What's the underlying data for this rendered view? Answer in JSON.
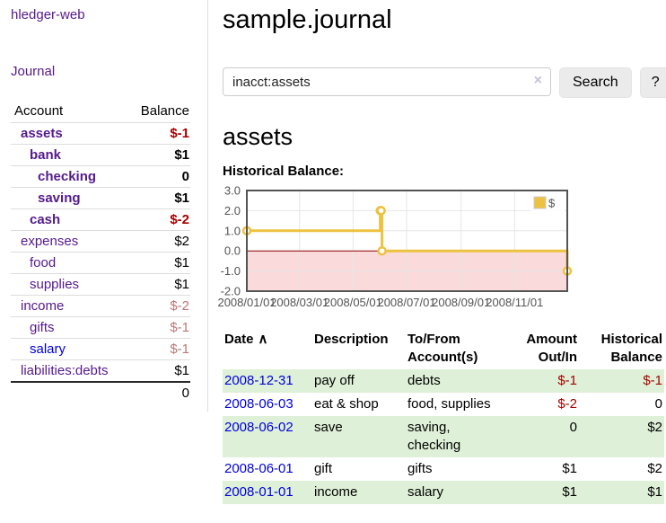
{
  "colors": {
    "purple_link": "#551a8b",
    "blue_link": "#0000dd",
    "negative_strong": "#a40000",
    "negative_soft": "#bb7777",
    "stripe_green": "#dff0d8",
    "series_yellow": "#edc240",
    "zero_line_red": "#8b0000",
    "negative_region_pink": "#fadada",
    "grid_gray": "#e6e6e6",
    "axis_gray": "#545454"
  },
  "sidebar": {
    "brand": "hledger-web",
    "nav": {
      "journal": "Journal"
    },
    "table": {
      "headers": {
        "account": "Account",
        "balance": "Balance"
      },
      "rows": [
        {
          "account": "assets",
          "balance": "$-1",
          "indent": 1,
          "bold": true,
          "balance_tone": "neg-strong",
          "link_tone": "purple"
        },
        {
          "account": "bank",
          "balance": "$1",
          "indent": 2,
          "bold": true,
          "balance_tone": "plain",
          "link_tone": "purple"
        },
        {
          "account": "checking",
          "balance": "0",
          "indent": 3,
          "bold": true,
          "balance_tone": "plain",
          "link_tone": "purple"
        },
        {
          "account": "saving",
          "balance": "$1",
          "indent": 3,
          "bold": true,
          "balance_tone": "plain",
          "link_tone": "purple"
        },
        {
          "account": "cash",
          "balance": "$-2",
          "indent": 2,
          "bold": true,
          "balance_tone": "neg-strong",
          "link_tone": "purple"
        },
        {
          "account": "expenses",
          "balance": "$2",
          "indent": 1,
          "bold": false,
          "balance_tone": "plain",
          "link_tone": "purple"
        },
        {
          "account": "food",
          "balance": "$1",
          "indent": 2,
          "bold": false,
          "balance_tone": "plain",
          "link_tone": "purple"
        },
        {
          "account": "supplies",
          "balance": "$1",
          "indent": 2,
          "bold": false,
          "balance_tone": "plain",
          "link_tone": "purple"
        },
        {
          "account": "income",
          "balance": "$-2",
          "indent": 1,
          "bold": false,
          "balance_tone": "neg-soft",
          "link_tone": "purple"
        },
        {
          "account": "gifts",
          "balance": "$-1",
          "indent": 2,
          "bold": false,
          "balance_tone": "neg-soft",
          "link_tone": "purple"
        },
        {
          "account": "salary",
          "balance": "$-1",
          "indent": 2,
          "bold": false,
          "balance_tone": "neg-soft",
          "link_tone": "blue"
        },
        {
          "account": "liabilities:debts",
          "balance": "$1",
          "indent": 1,
          "bold": false,
          "balance_tone": "plain",
          "link_tone": "purple"
        }
      ],
      "total": "0"
    }
  },
  "main": {
    "title": "sample.journal",
    "search": {
      "value": "inacct:assets",
      "placeholder": "",
      "clear_icon": "×",
      "search_button": "Search",
      "help_button": "?"
    },
    "account_heading": "assets"
  },
  "chart_data": {
    "type": "line",
    "title": "Historical Balance:",
    "step": true,
    "series": [
      {
        "name": "$",
        "color": "#edc240",
        "points": [
          {
            "date": "2008-01-01",
            "value": 1
          },
          {
            "date": "2008-06-01",
            "value": 2
          },
          {
            "date": "2008-06-02",
            "value": 2
          },
          {
            "date": "2008-06-03",
            "value": 0
          },
          {
            "date": "2008-12-31",
            "value": -1
          }
        ]
      }
    ],
    "x_range": [
      "2008-01-01",
      "2008-12-31"
    ],
    "x_ticks": [
      "2008/01/01",
      "2008/03/01",
      "2008/05/01",
      "2008/07/01",
      "2008/09/01",
      "2008/11/01"
    ],
    "y_range": [
      -2,
      3
    ],
    "y_ticks": [
      3.0,
      2.0,
      1.0,
      0.0,
      -1.0,
      -2.0
    ],
    "legend": {
      "label": "$",
      "position": "top-right"
    },
    "grid": true,
    "negative_region_fill": "#fadada",
    "zero_line_color": "#8b0000"
  },
  "register": {
    "headers": {
      "date": "Date",
      "sort_icon": "∧",
      "description": "Description",
      "accounts_line1": "To/From",
      "accounts_line2": "Account(s)",
      "amount_line1": "Amount",
      "amount_line2": "Out/In",
      "balance_line1": "Historical",
      "balance_line2": "Balance"
    },
    "rows": [
      {
        "date": "2008-12-31",
        "description": "pay off",
        "accounts": "debts",
        "amount": "$-1",
        "amount_tone": "neg",
        "balance": "$-1",
        "balance_tone": "neg",
        "stripe": true
      },
      {
        "date": "2008-06-03",
        "description": "eat & shop",
        "accounts": "food, supplies",
        "amount": "$-2",
        "amount_tone": "neg",
        "balance": "0",
        "balance_tone": "plain",
        "stripe": false
      },
      {
        "date": "2008-06-02",
        "description": "save",
        "accounts": "saving, checking",
        "amount": "0",
        "amount_tone": "plain",
        "balance": "$2",
        "balance_tone": "plain",
        "stripe": true
      },
      {
        "date": "2008-06-01",
        "description": "gift",
        "accounts": "gifts",
        "amount": "$1",
        "amount_tone": "plain",
        "balance": "$2",
        "balance_tone": "plain",
        "stripe": false
      },
      {
        "date": "2008-01-01",
        "description": "income",
        "accounts": "salary",
        "amount": "$1",
        "amount_tone": "plain",
        "balance": "$1",
        "balance_tone": "plain",
        "stripe": true
      }
    ]
  }
}
